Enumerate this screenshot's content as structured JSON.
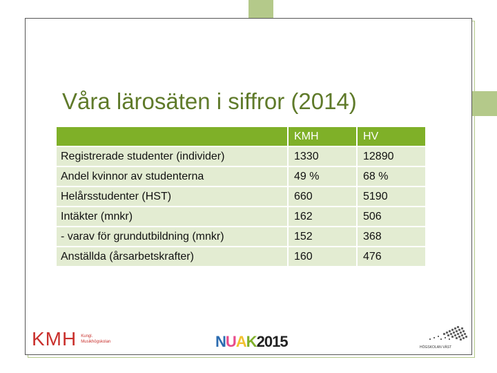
{
  "slide": {
    "title": "Våra lärosäten i siffror (2014)"
  },
  "table": {
    "headers": [
      "",
      "KMH",
      "HV"
    ],
    "rows": [
      {
        "label": "Registrerade studenter (individer)",
        "kmh": "1330",
        "hv": "12890"
      },
      {
        "label": "Andel kvinnor av studenterna",
        "kmh": "49 %",
        "hv": "68 %"
      },
      {
        "label": "Helårsstudenter (HST)",
        "kmh": "660",
        "hv": "5190"
      },
      {
        "label": "Intäkter (mnkr)",
        "kmh": "162",
        "hv": "506"
      },
      {
        "label": "- varav för grundutbildning (mnkr)",
        "kmh": "152",
        "hv": "368"
      },
      {
        "label": "Anställda (årsarbetskrafter)",
        "kmh": "160",
        "hv": "476"
      }
    ]
  },
  "logos": {
    "kmh": {
      "letters": "KMH",
      "line1": "Kungl.",
      "line2": "Musikhögskolan",
      "color": "#c9302c"
    },
    "nuak": {
      "text": "NUAK2015",
      "colors": [
        "#2b6cb0",
        "#e84c8b",
        "#f2c12e",
        "#7fb028",
        "#222222"
      ]
    },
    "hv": {
      "text": "HÖGSKOLAN VÄST"
    }
  },
  "colors": {
    "accent": "#7fb028",
    "row_fill": "#e3ecd2",
    "title": "#5f7a2a",
    "frame_green": "#b4c98a"
  }
}
